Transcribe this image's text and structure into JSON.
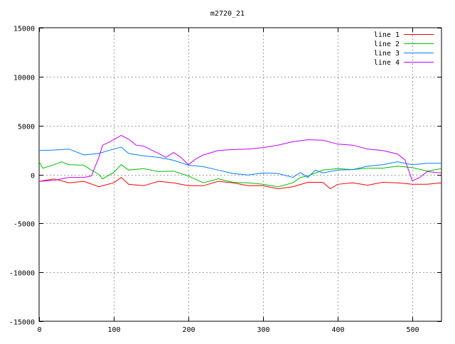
{
  "chart_data": {
    "type": "line",
    "title": "m2720_21",
    "xlabel": "",
    "ylabel": "",
    "xlim": [
      0,
      539
    ],
    "ylim": [
      -15000,
      15000
    ],
    "xticks": [
      0,
      100,
      200,
      300,
      400,
      500
    ],
    "yticks": [
      -15000,
      -10000,
      -5000,
      0,
      5000,
      10000,
      15000
    ],
    "grid": true,
    "legend_position": "top-right",
    "series": [
      {
        "name": "line 1",
        "color": "#ff0000",
        "x": [
          0,
          20,
          40,
          60,
          80,
          100,
          110,
          120,
          140,
          160,
          180,
          200,
          220,
          240,
          260,
          280,
          300,
          320,
          340,
          360,
          380,
          390,
          400,
          420,
          440,
          460,
          480,
          500,
          520,
          539
        ],
        "y": [
          -700,
          -450,
          -850,
          -700,
          -1250,
          -850,
          -300,
          -1000,
          -1150,
          -700,
          -850,
          -1150,
          -1150,
          -700,
          -850,
          -1150,
          -1150,
          -1450,
          -1250,
          -800,
          -800,
          -1450,
          -1000,
          -850,
          -1100,
          -800,
          -850,
          -1000,
          -1000,
          -850
        ]
      },
      {
        "name": "line 2",
        "color": "#00c000",
        "x": [
          0,
          5,
          20,
          30,
          40,
          60,
          70,
          80,
          85,
          100,
          110,
          120,
          140,
          160,
          180,
          200,
          220,
          240,
          260,
          280,
          300,
          320,
          340,
          350,
          360,
          380,
          400,
          420,
          440,
          460,
          480,
          500,
          520,
          539
        ],
        "y": [
          1300,
          650,
          1000,
          1300,
          1000,
          950,
          450,
          0,
          -450,
          200,
          1000,
          450,
          600,
          300,
          350,
          -150,
          -850,
          -450,
          -800,
          -850,
          -1000,
          -1250,
          -850,
          -300,
          -150,
          450,
          600,
          500,
          650,
          650,
          850,
          700,
          350,
          600
        ]
      },
      {
        "name": "line 3",
        "color": "#0080ff",
        "x": [
          0,
          20,
          40,
          60,
          80,
          100,
          110,
          120,
          140,
          160,
          180,
          200,
          220,
          240,
          260,
          280,
          300,
          320,
          340,
          350,
          360,
          370,
          380,
          400,
          420,
          440,
          460,
          480,
          500,
          520,
          539
        ],
        "y": [
          2450,
          2500,
          2600,
          2000,
          2150,
          2600,
          2800,
          2150,
          1900,
          1750,
          1450,
          950,
          800,
          450,
          100,
          -50,
          150,
          100,
          -300,
          200,
          -300,
          450,
          150,
          450,
          500,
          850,
          1000,
          1300,
          1000,
          1150,
          1150
        ]
      },
      {
        "name": "line 4",
        "color": "#c000ff",
        "x": [
          0,
          20,
          40,
          60,
          70,
          80,
          85,
          95,
          110,
          120,
          130,
          140,
          160,
          170,
          180,
          190,
          200,
          210,
          220,
          240,
          260,
          280,
          300,
          320,
          340,
          360,
          380,
          400,
          420,
          440,
          460,
          480,
          490,
          500,
          510,
          520,
          539
        ],
        "y": [
          -700,
          -600,
          -300,
          -300,
          -150,
          1750,
          3000,
          3350,
          4000,
          3600,
          3000,
          2900,
          2150,
          1750,
          2250,
          1750,
          1000,
          1600,
          2000,
          2450,
          2550,
          2600,
          2750,
          3000,
          3350,
          3550,
          3500,
          3100,
          3000,
          2600,
          2450,
          2100,
          1500,
          -650,
          -300,
          300,
          150
        ]
      }
    ]
  }
}
